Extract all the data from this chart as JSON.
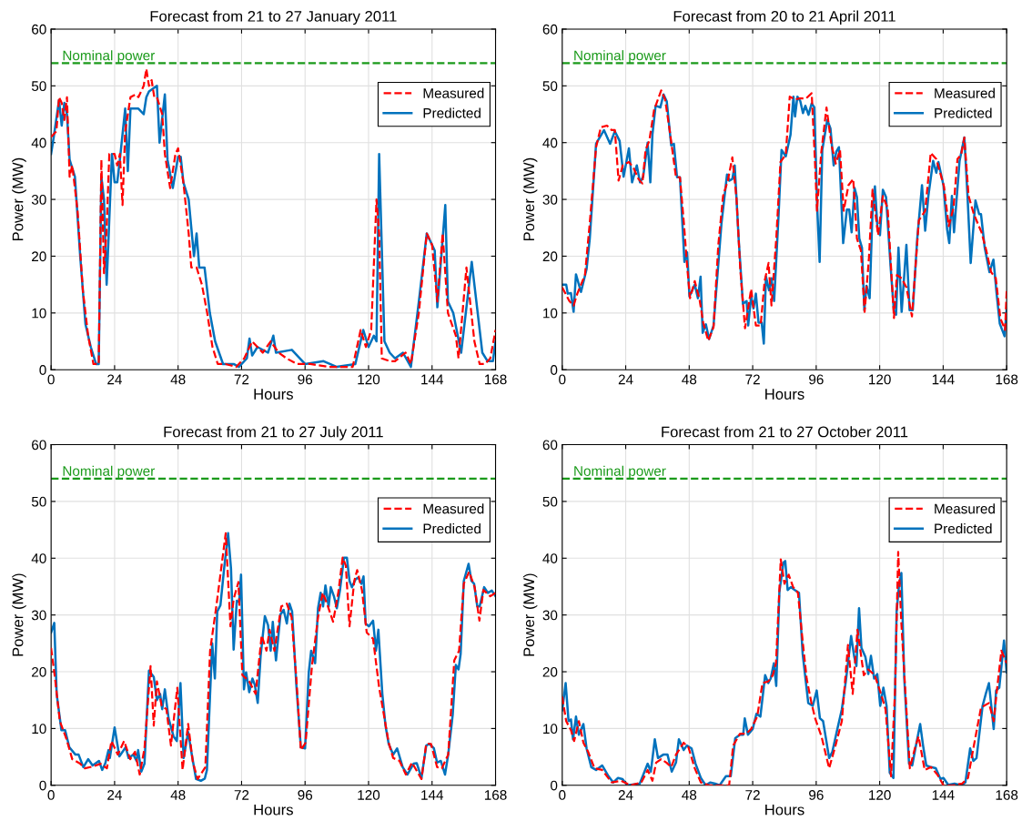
{
  "chart_data": [
    {
      "type": "line",
      "title": "Forecast from 21 to 27 January 2011",
      "xlabel": "Hours",
      "ylabel": "Power (MW)",
      "xlim": [
        0,
        168
      ],
      "ylim": [
        0,
        60
      ],
      "xticks": [
        0,
        24,
        48,
        72,
        96,
        120,
        144,
        168
      ],
      "yticks": [
        0,
        10,
        20,
        30,
        40,
        50,
        60
      ],
      "grid": true,
      "legend": "top right",
      "ref_lines": [
        {
          "axis": "y",
          "value": 54,
          "label": "Nominal power",
          "color": "#1a9a1a",
          "line_style": "dashed"
        }
      ],
      "series": [
        {
          "name": "Measured",
          "color": "#ff0000",
          "line_style": "dashed",
          "x": [
            0,
            2,
            3,
            4,
            5,
            6,
            7,
            8,
            10,
            12,
            14,
            16,
            18,
            19,
            20,
            21,
            22,
            24,
            25,
            26,
            27,
            28,
            30,
            32,
            33,
            35,
            36,
            37,
            38,
            39,
            40,
            42,
            43,
            45,
            47,
            48,
            50,
            52,
            53,
            55,
            57,
            59,
            61,
            63,
            66,
            70,
            73,
            76,
            78,
            80,
            83,
            86,
            89,
            93,
            98,
            105,
            114,
            117,
            119,
            121,
            123,
            124,
            125,
            128,
            130,
            134,
            136,
            139,
            142,
            144,
            146,
            148,
            150,
            153,
            154,
            157,
            160,
            162,
            164,
            166,
            168
          ],
          "values": [
            41,
            42,
            48,
            47,
            44,
            48,
            34,
            36,
            28,
            14,
            6,
            1,
            1,
            37,
            17,
            25,
            38,
            38,
            36,
            38,
            29,
            42,
            48,
            48.5,
            48,
            50,
            53,
            50,
            51,
            48,
            48,
            45,
            38,
            32,
            38,
            39,
            33,
            24,
            18,
            18,
            15,
            10,
            4,
            1,
            1,
            0.5,
            2,
            5,
            4,
            3,
            5,
            3,
            2,
            1,
            1,
            0.5,
            0.5,
            7,
            4,
            7,
            30,
            24,
            2,
            1.5,
            1.5,
            3,
            1,
            10,
            24,
            22,
            12,
            24,
            10,
            6,
            2,
            18,
            5,
            1,
            1,
            2,
            7
          ]
        },
        {
          "name": "Predicted",
          "color": "#0072bd",
          "line_style": "solid",
          "x": [
            0,
            1,
            3,
            4,
            5,
            6,
            7,
            9,
            11,
            13,
            15,
            17,
            18,
            19,
            20,
            21,
            23,
            24,
            25,
            26,
            28,
            29,
            30,
            33,
            35,
            36,
            37,
            40,
            41,
            43,
            44,
            46,
            48,
            49,
            50,
            52,
            54,
            55,
            56,
            58,
            60,
            62,
            65,
            69,
            71,
            74,
            75,
            76,
            78,
            82,
            84,
            85,
            91,
            96,
            103,
            108,
            115,
            118,
            120,
            122,
            123,
            124,
            126,
            128,
            130,
            133,
            136,
            139,
            142,
            145,
            146,
            149,
            150,
            152,
            155,
            159,
            163,
            165,
            167,
            168
          ],
          "values": [
            38,
            41,
            47.5,
            43,
            47,
            45,
            37,
            34,
            20,
            8,
            4,
            1,
            1,
            34,
            30,
            15,
            38,
            33,
            33,
            37,
            46,
            35,
            46,
            46,
            45,
            48,
            49,
            50,
            40,
            48.5,
            37,
            32,
            37.5,
            37.5,
            33,
            30,
            20,
            24,
            18,
            18,
            10,
            5,
            1,
            1,
            0.5,
            2,
            5.5,
            2.5,
            4,
            3,
            6,
            3,
            3.5,
            1,
            1.5,
            0.5,
            1,
            7,
            4,
            6,
            5,
            38,
            5,
            3,
            2,
            3,
            0.5,
            12,
            24,
            21,
            11,
            29,
            12,
            10,
            3,
            19,
            3,
            1.5,
            1.5,
            5
          ]
        }
      ]
    },
    {
      "type": "line",
      "title": "Forecast from 20 to 21 April 2011",
      "xlabel": "Hours",
      "ylabel": "Power (MW)",
      "xlim": [
        0,
        168
      ],
      "ylim": [
        0,
        60
      ],
      "xticks": [
        0,
        24,
        48,
        72,
        96,
        120,
        144,
        168
      ],
      "yticks": [
        0,
        10,
        20,
        30,
        40,
        50,
        60
      ],
      "grid": true,
      "legend": "top right",
      "ref_lines": [
        {
          "axis": "y",
          "value": 54,
          "label": "Nominal power",
          "color": "#1a9a1a",
          "line_style": "dashed"
        }
      ],
      "series": [
        {
          "name": "Measured",
          "color": "#ff0000",
          "line_style": "dashed",
          "x": [
            0,
            2.7,
            4.3,
            5.7,
            8.6,
            10.4,
            12.8,
            14.6,
            16.9,
            18.7,
            19.9,
            21.3,
            22.9,
            25.2,
            27,
            28.8,
            30.3,
            31.5,
            32.9,
            34.7,
            37.4,
            38.9,
            40.6,
            43,
            44.5,
            46,
            47.2,
            48.3,
            50.1,
            51.9,
            53.3,
            55.2,
            57.2,
            59,
            60.8,
            62.6,
            64.3,
            65.9,
            67.3,
            69.1,
            71.4,
            73.2,
            75,
            76.5,
            78,
            79.1,
            80.9,
            82.5,
            84.5,
            86,
            88,
            89.8,
            92.2,
            94.3,
            95.5,
            96.3,
            97.9,
            99.9,
            101.7,
            103.4,
            105,
            106.4,
            108.2,
            110,
            111.4,
            112.9,
            114.3,
            115.9,
            117.3,
            119.4,
            121.2,
            123,
            125.4,
            126.5,
            128.3,
            130.1,
            132.2,
            134.8,
            137.2,
            139.3,
            141.4,
            144.3,
            146.1,
            147.9,
            149.4,
            150.8,
            152,
            153.6,
            155.6,
            158.5,
            160.3,
            162.1,
            163.9,
            165.6,
            167.4,
            168
          ],
          "values": [
            14.5,
            12.1,
            11.3,
            13.4,
            16.7,
            25.8,
            39.2,
            42.7,
            43,
            42.2,
            42.2,
            33.3,
            36,
            36.6,
            35.5,
            33.6,
            32.8,
            38.7,
            40.3,
            45.7,
            49.2,
            47.6,
            42.2,
            33.9,
            33.9,
            25.8,
            18.3,
            12.6,
            15.6,
            12.4,
            8.3,
            5.1,
            7.5,
            22,
            30.6,
            33.3,
            37.4,
            30.1,
            17.7,
            7.3,
            14.2,
            7.8,
            7.8,
            15.6,
            18.8,
            11.3,
            23.1,
            36.6,
            37.9,
            48.1,
            47.6,
            47.8,
            47.8,
            48.7,
            37.1,
            28,
            38.2,
            46.2,
            39.8,
            36.3,
            38.7,
            28,
            32.5,
            33.6,
            23.1,
            21,
            10.2,
            19.4,
            31.7,
            23.7,
            30.6,
            28.5,
            9.1,
            16.7,
            16.1,
            14.5,
            9.4,
            26.3,
            28,
            38.2,
            37.1,
            32.3,
            25.3,
            28.5,
            37.1,
            37.9,
            40.9,
            30.6,
            27.4,
            24.2,
            21,
            17.2,
            16.1,
            9.1,
            7,
            14
          ]
        },
        {
          "name": "Predicted",
          "color": "#0072bd",
          "line_style": "solid",
          "x": [
            0,
            1.5,
            2.1,
            3.3,
            4.3,
            5.2,
            7.1,
            9.2,
            10.4,
            12.8,
            15.8,
            18.1,
            19.9,
            21.7,
            23.2,
            25.2,
            26.4,
            28.2,
            29.4,
            30.6,
            32.3,
            33.3,
            34.1,
            35.3,
            37.1,
            38.3,
            39.5,
            41.2,
            42.2,
            43.4,
            44.5,
            46.2,
            47.2,
            48.1,
            50.1,
            51.3,
            52.3,
            53.1,
            54.3,
            55.5,
            57.2,
            60.2,
            62.3,
            63.2,
            64.3,
            65.2,
            66.7,
            68.3,
            69.7,
            70.3,
            71.4,
            72.3,
            73.2,
            74.2,
            75.4,
            76.2,
            77,
            78.2,
            79.1,
            80.1,
            81.8,
            82.9,
            84.5,
            86.3,
            87.4,
            88,
            88.9,
            90,
            91,
            91.9,
            93.1,
            94.3,
            95.3,
            96.4,
            97.3,
            98.3,
            100.2,
            101.4,
            102.6,
            103.6,
            104.6,
            106.2,
            107.6,
            108.5,
            109.4,
            110.5,
            111.4,
            112.3,
            113.3,
            114.2,
            115,
            116.2,
            117.3,
            118.2,
            119.2,
            120.1,
            121.2,
            122.4,
            124.2,
            125.4,
            126.2,
            127.1,
            128.3,
            130.1,
            131.3,
            132.5,
            134.2,
            136,
            137.2,
            138.4,
            140.2,
            141.4,
            142.2,
            144.1,
            145.5,
            146.3,
            147.3,
            148.1,
            150.2,
            152,
            153.2,
            154.4,
            156.2,
            157.6,
            158.3,
            159.7,
            161.5,
            163,
            164.2,
            165.4,
            167.2,
            168
          ],
          "values": [
            15,
            15,
            13.4,
            13.5,
            10.2,
            16.8,
            13.7,
            17.7,
            23,
            39.8,
            42.2,
            39.8,
            42,
            40.3,
            34,
            39,
            33,
            36,
            33,
            34,
            40,
            33,
            41.4,
            46.5,
            46.2,
            48.5,
            47.3,
            39.5,
            39.8,
            33.9,
            33.9,
            19,
            20.7,
            12.9,
            15,
            12.6,
            16.4,
            6.5,
            8,
            5.4,
            7.8,
            25.8,
            34.4,
            33.3,
            33.6,
            36,
            23,
            11.6,
            12.1,
            7.8,
            12.9,
            10.8,
            13.4,
            8.3,
            8.3,
            4.6,
            16.4,
            14,
            16.1,
            12.1,
            27.4,
            38.7,
            37.6,
            41.4,
            48.1,
            44.6,
            48.1,
            47.3,
            45.2,
            46.5,
            44.9,
            46.9,
            46.2,
            28.5,
            19,
            38.7,
            44,
            42.5,
            36,
            38.4,
            39.2,
            22.3,
            28.2,
            28.2,
            24.2,
            32,
            30.4,
            23.1,
            21.5,
            10.5,
            14.8,
            12.6,
            28,
            32.3,
            24.7,
            23.7,
            31.7,
            30.4,
            17.7,
            10.2,
            9.7,
            21.5,
            10.2,
            22,
            10.5,
            10.5,
            23.1,
            32.5,
            24.5,
            30.6,
            36.8,
            34.7,
            36.6,
            32.5,
            24.7,
            22.3,
            30.6,
            24.2,
            36.8,
            40.9,
            30.6,
            18.8,
            29.8,
            27.4,
            27.4,
            21.5,
            17.2,
            19.4,
            13.4,
            8.1,
            5.9,
            10.8
          ]
        }
      ]
    },
    {
      "type": "line",
      "title": "Forecast from 21 to 27 July 2011",
      "xlabel": "Hours",
      "ylabel": "Power (MW)",
      "xlim": [
        0,
        168
      ],
      "ylim": [
        0,
        60
      ],
      "xticks": [
        0,
        24,
        48,
        72,
        96,
        120,
        144,
        168
      ],
      "yticks": [
        0,
        10,
        20,
        30,
        40,
        50,
        60
      ],
      "grid": true,
      "legend": "top right",
      "ref_lines": [
        {
          "axis": "y",
          "value": 54,
          "label": "Nominal power",
          "color": "#1a9a1a",
          "line_style": "dashed"
        }
      ],
      "series": [
        {
          "name": "Measured",
          "color": "#ff0000",
          "line_style": "dashed",
          "x": [
            0,
            1.5,
            3.3,
            5.7,
            8,
            11,
            12.8,
            15.7,
            18.7,
            21.1,
            22.8,
            25.2,
            27.6,
            29.9,
            31.7,
            33.5,
            35.3,
            37.6,
            38.8,
            40,
            41.8,
            43.6,
            45.3,
            47.7,
            49.7,
            51.8,
            53.6,
            55.4,
            58.3,
            60.1,
            62.5,
            64.3,
            66,
            67.8,
            69,
            70.8,
            72.3,
            74.9,
            77.3,
            79.6,
            81.4,
            82.6,
            84.4,
            87,
            89.1,
            90.9,
            92.7,
            94.4,
            96.2,
            98.6,
            100.9,
            102.7,
            104.5,
            106.6,
            108.6,
            110.2,
            111.4,
            112.8,
            114.6,
            115.7,
            117.5,
            119.3,
            121.7,
            124,
            125.8,
            127.6,
            129.3,
            131.7,
            134.1,
            136.4,
            140,
            141.8,
            143.6,
            145.9,
            147.7,
            150.1,
            152.4,
            154.2,
            156,
            158,
            160.1,
            161.9,
            163.4,
            166,
            168
          ],
          "values": [
            24.2,
            18.8,
            11.3,
            8.3,
            4.6,
            3.8,
            3,
            3.3,
            3.8,
            3,
            7.8,
            5.4,
            7.8,
            4.6,
            5.9,
            1.9,
            6.5,
            21,
            10.5,
            18.3,
            14,
            13.4,
            7,
            17.2,
            2.7,
            10.8,
            4,
            1.1,
            3.2,
            23.7,
            31.7,
            38.2,
            44.4,
            28,
            32.8,
            35.8,
            19.4,
            18.3,
            16.1,
            26.4,
            23.7,
            27.4,
            23.7,
            31.5,
            32,
            29.6,
            18.8,
            6.2,
            7.5,
            21,
            29.6,
            33.9,
            31.7,
            28.8,
            34.1,
            40.1,
            38.7,
            28,
            36,
            37.9,
            34.4,
            26.9,
            25.8,
            17.2,
            12.4,
            7.5,
            4.8,
            4.3,
            1.9,
            4,
            1.1,
            7.3,
            7.3,
            3.2,
            3,
            5.4,
            22,
            23.7,
            35.5,
            37.6,
            34.9,
            29,
            34.4,
            33.3,
            33.9
          ]
        },
        {
          "name": "Predicted",
          "color": "#0072bd",
          "line_style": "solid",
          "x": [
            0,
            1.2,
            2.1,
            3.9,
            5.3,
            6.9,
            9.2,
            10.4,
            12.2,
            14,
            15.7,
            18.1,
            19.3,
            20.5,
            21.7,
            22.2,
            24,
            25.8,
            28.2,
            29.3,
            31.1,
            32.3,
            32.9,
            34.1,
            35.3,
            37,
            38.8,
            40,
            41.2,
            42,
            43,
            44.4,
            46.3,
            47.5,
            48.9,
            50.1,
            51.8,
            53,
            54.8,
            56.6,
            58.1,
            58.9,
            60.1,
            60.9,
            61.9,
            62.8,
            64,
            65.4,
            66.9,
            68,
            69,
            70.2,
            71.1,
            71.8,
            72.9,
            73.7,
            74.9,
            76.1,
            77,
            78.1,
            79.2,
            80.8,
            82,
            83,
            83.8,
            85,
            86.7,
            87.9,
            89.1,
            90.1,
            91.1,
            92.7,
            94.4,
            96,
            97.4,
            98.3,
            99.8,
            100.9,
            101.9,
            102.8,
            103.7,
            104.9,
            105.7,
            106.9,
            108,
            109.2,
            110.7,
            111.8,
            112.8,
            113.7,
            115.1,
            116.1,
            117.3,
            118.1,
            118.9,
            120.1,
            121.7,
            122.8,
            123.7,
            125.2,
            126.4,
            127.6,
            129.3,
            130.8,
            132.9,
            134.7,
            137,
            138.2,
            140,
            141.8,
            143,
            144.7,
            145.9,
            147.3,
            148.9,
            150.1,
            151.8,
            153,
            154,
            154.8,
            156,
            157.8,
            158.9,
            159.9,
            161.1,
            162,
            163.7,
            165.1,
            166.6,
            168
          ],
          "values": [
            26.9,
            28.6,
            16.1,
            9.7,
            9.7,
            6.7,
            5.4,
            5.4,
            3.2,
            4.6,
            3.5,
            4.3,
            2.7,
            3.9,
            6.2,
            4.8,
            10.2,
            5.1,
            6.7,
            4.8,
            5.4,
            4.3,
            6.2,
            2.4,
            3.8,
            20.2,
            19.1,
            15,
            16.1,
            13.4,
            16.9,
            11.8,
            8.6,
            7.8,
            18,
            4.8,
            9.4,
            5.9,
            1.1,
            0.8,
            1.2,
            2.7,
            16.1,
            25,
            18.8,
            30.6,
            31.7,
            38.2,
            44.4,
            38.2,
            23.9,
            32.5,
            32.3,
            37.1,
            16.9,
            19.9,
            16.4,
            18.8,
            17.7,
            14.5,
            22.8,
            29.8,
            28.2,
            23.7,
            28.8,
            22,
            30.1,
            30.9,
            28.5,
            32,
            30.6,
            17.7,
            6.7,
            6.5,
            19.9,
            23.7,
            21.5,
            31.2,
            33.9,
            31.5,
            35.2,
            31.5,
            34.9,
            33.3,
            31.2,
            34.4,
            40.1,
            40.1,
            36,
            34.9,
            36.3,
            36.6,
            35.5,
            36.8,
            28.5,
            28,
            29,
            23.7,
            27.4,
            16.1,
            10.5,
            7.3,
            5.4,
            6.5,
            3.2,
            1.9,
            3.8,
            3.9,
            1.3,
            7,
            7.3,
            6.5,
            4,
            4.3,
            1.9,
            5.4,
            12.4,
            21.2,
            20.4,
            23.1,
            36,
            39,
            36,
            35.5,
            31.5,
            31.5,
            34.9,
            33.9,
            34.3,
            33.3
          ]
        }
      ]
    },
    {
      "type": "line",
      "title": "Forecast from 21 to 27 October 2011",
      "xlabel": "Hours",
      "ylabel": "Power (MW)",
      "xlim": [
        0,
        168
      ],
      "ylim": [
        0,
        60
      ],
      "xticks": [
        0,
        24,
        48,
        72,
        96,
        120,
        144,
        168
      ],
      "yticks": [
        0,
        10,
        20,
        30,
        40,
        50,
        60
      ],
      "grid": true,
      "legend": "top right",
      "ref_lines": [
        {
          "axis": "y",
          "value": 54,
          "label": "Nominal power",
          "color": "#1a9a1a",
          "line_style": "dashed"
        }
      ],
      "series": [
        {
          "name": "Measured",
          "color": "#ff0000",
          "line_style": "dashed",
          "x": [
            0,
            1.5,
            3.3,
            4.5,
            6.3,
            8,
            9.8,
            12.2,
            15.1,
            18.7,
            22.2,
            25.8,
            29.9,
            32.3,
            34.1,
            35.5,
            37.4,
            39.4,
            41.2,
            43,
            45.9,
            47.7,
            50.1,
            52.4,
            55.4,
            60.1,
            63.1,
            64.6,
            67.2,
            69.6,
            71.4,
            73.7,
            75.7,
            77.9,
            79.6,
            80.8,
            82.6,
            84,
            85.6,
            87.3,
            89.1,
            90.9,
            92.4,
            94.2,
            95.6,
            98,
            100.9,
            103.3,
            105.7,
            108,
            109.8,
            111.6,
            114,
            115.7,
            118.1,
            120.5,
            122.2,
            124.3,
            125.8,
            127,
            128.2,
            129.9,
            131.4,
            133.3,
            134.7,
            137,
            139.4,
            141.8,
            144.1,
            147.7,
            151.2,
            153.4,
            155.4,
            158.3,
            161.3,
            163.1,
            164.3,
            166,
            168
          ],
          "values": [
            15.6,
            11.3,
            9.7,
            7.8,
            11.3,
            7.5,
            5.9,
            3,
            2.7,
            0.5,
            0.8,
            0,
            0.5,
            2.7,
            0.8,
            4,
            4.6,
            4,
            3.2,
            5.4,
            7.5,
            6.7,
            3,
            0.5,
            0,
            0,
            0,
            7,
            9.1,
            9.1,
            9.9,
            12.1,
            18,
            18.3,
            19.4,
            21.5,
            39.8,
            35.5,
            37.1,
            34.9,
            33.9,
            25.3,
            18.8,
            14.5,
            11.8,
            8.6,
            3,
            7,
            11.3,
            24.7,
            16.1,
            27.4,
            19.4,
            20.4,
            19.4,
            16.1,
            13.4,
            1.6,
            16.7,
            41.1,
            28.5,
            15,
            3,
            6.5,
            8.6,
            2.7,
            3.2,
            1.9,
            0,
            0,
            0.3,
            1.3,
            6.5,
            13.7,
            14.5,
            11.3,
            16.7,
            23.7,
            21.5
          ]
        },
        {
          "name": "Predicted",
          "color": "#0072bd",
          "line_style": "solid",
          "x": [
            0,
            1.3,
            2.4,
            3.3,
            4.1,
            5.2,
            6.3,
            8,
            9.2,
            11,
            12.8,
            15.1,
            17.5,
            19.3,
            21.1,
            22.8,
            24.6,
            29.3,
            32.3,
            33.5,
            35,
            36.2,
            38.2,
            39.8,
            41.4,
            43,
            44.1,
            45.9,
            47.1,
            48.9,
            50.4,
            52.4,
            54.2,
            56,
            57.8,
            59.5,
            61.9,
            63.7,
            65.4,
            67.2,
            68.4,
            69,
            70.2,
            72,
            73.4,
            74.9,
            76.7,
            77.9,
            78.8,
            80,
            80.9,
            82.1,
            83.6,
            84.3,
            85.2,
            86.4,
            87.9,
            89.5,
            90.9,
            93,
            94.7,
            96.2,
            97.4,
            98.6,
            100.9,
            102.1,
            103.9,
            105.7,
            107.2,
            109.2,
            110.4,
            111.2,
            112.2,
            113.1,
            114.6,
            115.7,
            116.7,
            117.9,
            119.1,
            120.2,
            121.4,
            122.6,
            123.8,
            125.2,
            126.4,
            127.3,
            128.2,
            129.3,
            131.1,
            132.3,
            133.5,
            135.3,
            136.4,
            137.6,
            139.4,
            141.2,
            143,
            144.1,
            145.9,
            148.3,
            150.7,
            152.4,
            154.2,
            155.4,
            156.6,
            158.9,
            160.1,
            161.3,
            163.1,
            164,
            165.2,
            167,
            168
          ],
          "values": [
            13.2,
            18,
            11.3,
            11.6,
            8.1,
            12.1,
            8.9,
            10.8,
            6.5,
            3.2,
            2.7,
            3.5,
            1.6,
            0.5,
            1.3,
            1.1,
            0,
            0.3,
            3.8,
            2.4,
            8.1,
            4.8,
            5.4,
            5.4,
            2.4,
            4,
            8.1,
            6.2,
            7,
            6.5,
            3.8,
            1.3,
            0,
            0.5,
            0.3,
            0,
            1.6,
            1.6,
            8.3,
            8.9,
            8.9,
            11.8,
            8.9,
            9.9,
            12.6,
            12.1,
            19.4,
            18,
            18.8,
            21.5,
            17.5,
            34.1,
            39.2,
            39.5,
            34.4,
            34.9,
            34.4,
            33.9,
            23.1,
            14.5,
            14,
            16.7,
            11.8,
            11.3,
            4.8,
            5.9,
            9.7,
            13.4,
            18.3,
            26.3,
            22.6,
            21,
            31.2,
            24.2,
            22.6,
            19.6,
            22.8,
            18.8,
            19.6,
            14,
            17.2,
            14,
            2.2,
            1.3,
            30.6,
            35.2,
            37.4,
            18.8,
            3.8,
            3.5,
            6.5,
            10.8,
            7,
            3.5,
            3.2,
            3,
            1.1,
            1.3,
            0.1,
            0.3,
            0,
            0.5,
            6.5,
            4.3,
            4.8,
            14,
            16.1,
            18,
            9.9,
            16.7,
            17.2,
            25.5,
            19.9
          ]
        }
      ]
    }
  ]
}
